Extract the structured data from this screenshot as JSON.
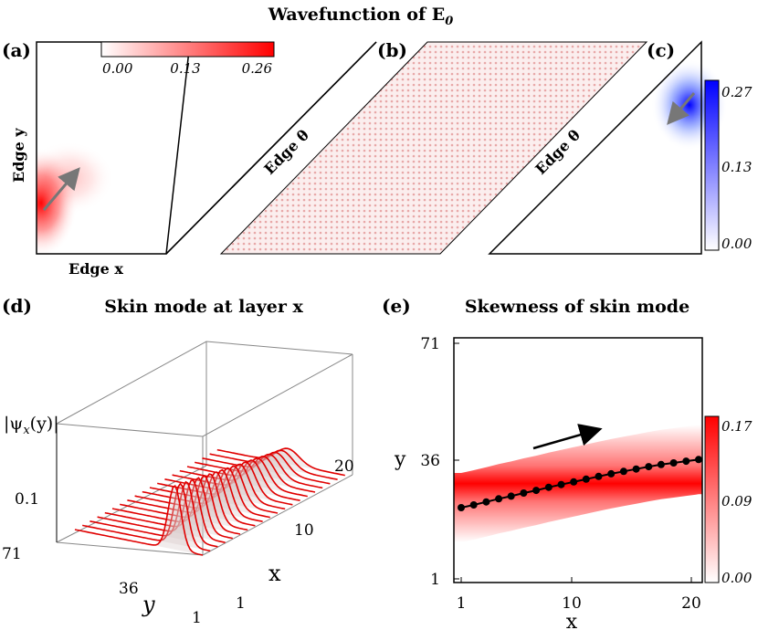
{
  "figure": {
    "title": "Wavefunction of E",
    "title_sub": "0",
    "panel_labels": [
      "(a)",
      "(b)",
      "(c)",
      "(d)",
      "(e)"
    ],
    "panel_a": {
      "edge_y": "Edge y",
      "edge_x": "Edge x",
      "edge_theta": "Edge θ",
      "colorbar_ticks": [
        "0.00",
        "0.13",
        "0.26"
      ],
      "color": "#ff0000"
    },
    "panel_b": {
      "color": "#e8a8a8"
    },
    "panel_c": {
      "edge_theta": "Edge θ",
      "colorbar_ticks": [
        "0.27",
        "0.13",
        "0.00"
      ],
      "color": "#0000ff"
    },
    "panel_d": {
      "title": "Skin mode at layer x",
      "zlabel": "|ψ",
      "zlabel_sub": "x",
      "zlabel_tail": "(y)|",
      "z_tick": "0.1",
      "y_ticks": [
        "71",
        "36",
        "1"
      ],
      "y_label": "y",
      "x_ticks": [
        "20",
        "10",
        "1"
      ],
      "x_label": "x",
      "line_color": "#e00000",
      "layers": 20
    },
    "panel_e": {
      "title": "Skewness of skin mode",
      "x_ticks": [
        "1",
        "10",
        "20"
      ],
      "x_label": "x",
      "y_ticks": [
        "71",
        "36",
        "1"
      ],
      "y_label": "y",
      "colorbar_ticks": [
        "0.17",
        "0.09",
        "0.00"
      ],
      "color": "#ff0000"
    }
  },
  "chart_data": {
    "type": "scatter",
    "title": "Skewness of skin mode",
    "xlabel": "x",
    "ylabel": "y",
    "xlim": [
      1,
      20
    ],
    "ylim": [
      1,
      71
    ],
    "x": [
      1,
      2,
      3,
      4,
      5,
      6,
      7,
      8,
      9,
      10,
      11,
      12,
      13,
      14,
      15,
      16,
      17,
      18,
      19,
      20
    ],
    "y": [
      22.0,
      22.8,
      23.7,
      24.6,
      25.4,
      26.3,
      27.1,
      28.0,
      28.8,
      29.6,
      30.4,
      31.2,
      32.0,
      32.7,
      33.4,
      34.1,
      34.7,
      35.2,
      35.7,
      36.2
    ],
    "colorbar": {
      "min": 0.0,
      "max": 0.17
    }
  }
}
